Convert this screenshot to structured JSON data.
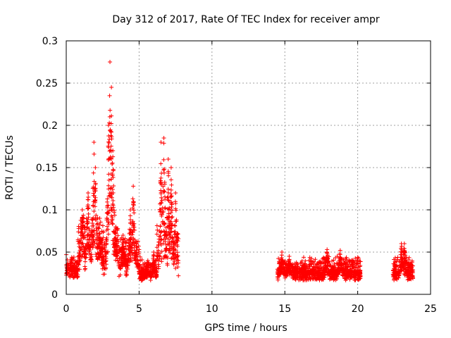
{
  "chart_data": {
    "type": "scatter",
    "title": "Day 312 of 2017, Rate Of TEC Index for receiver ampr",
    "xlabel": "GPS time / hours",
    "ylabel": "ROTI / TECUs",
    "xlim": [
      0,
      25
    ],
    "ylim": [
      0,
      0.3
    ],
    "x_ticks": [
      "0",
      "5",
      "10",
      "15",
      "20",
      "25"
    ],
    "y_ticks": [
      "0",
      "0.05",
      "0.1",
      "0.15",
      "0.2",
      "0.25",
      "0.3"
    ],
    "grid": true,
    "marker": "+",
    "color": "#ff0000",
    "clusters": [
      {
        "x_range": [
          0.0,
          0.8
        ],
        "y_base": 0.025,
        "y_spread": 0.012,
        "peaks": []
      },
      {
        "x_range": [
          0.8,
          2.2
        ],
        "y_base": 0.04,
        "y_spread": 0.03,
        "peaks": [
          [
            1.1,
            0.1
          ],
          [
            1.5,
            0.12
          ],
          [
            1.9,
            0.18
          ],
          [
            2.0,
            0.15
          ]
        ]
      },
      {
        "x_range": [
          2.2,
          3.6
        ],
        "y_base": 0.035,
        "y_spread": 0.03,
        "peaks": [
          [
            2.3,
            0.09
          ],
          [
            2.9,
            0.2
          ],
          [
            3.0,
            0.275
          ],
          [
            3.1,
            0.245
          ],
          [
            3.2,
            0.17
          ],
          [
            3.4,
            0.08
          ]
        ]
      },
      {
        "x_range": [
          3.6,
          5.0
        ],
        "y_base": 0.03,
        "y_spread": 0.02,
        "peaks": [
          [
            3.9,
            0.07
          ],
          [
            4.4,
            0.1
          ],
          [
            4.6,
            0.128
          ],
          [
            4.8,
            0.06
          ]
        ]
      },
      {
        "x_range": [
          5.0,
          6.2
        ],
        "y_base": 0.02,
        "y_spread": 0.012,
        "peaks": [
          [
            5.6,
            0.04
          ],
          [
            6.0,
            0.05
          ]
        ]
      },
      {
        "x_range": [
          6.2,
          7.7
        ],
        "y_base": 0.03,
        "y_spread": 0.03,
        "peaks": [
          [
            6.5,
            0.18
          ],
          [
            6.7,
            0.185
          ],
          [
            7.0,
            0.16
          ],
          [
            7.2,
            0.15
          ],
          [
            7.5,
            0.12
          ]
        ]
      },
      {
        "x_range": [
          14.5,
          20.2
        ],
        "y_base": 0.022,
        "y_spread": 0.012,
        "peaks": [
          [
            14.8,
            0.05
          ],
          [
            15.3,
            0.045
          ],
          [
            17.9,
            0.053
          ],
          [
            18.8,
            0.052
          ]
        ]
      },
      {
        "x_range": [
          22.4,
          23.8
        ],
        "y_base": 0.022,
        "y_spread": 0.012,
        "peaks": [
          [
            23.0,
            0.06
          ],
          [
            23.2,
            0.06
          ]
        ]
      }
    ]
  }
}
